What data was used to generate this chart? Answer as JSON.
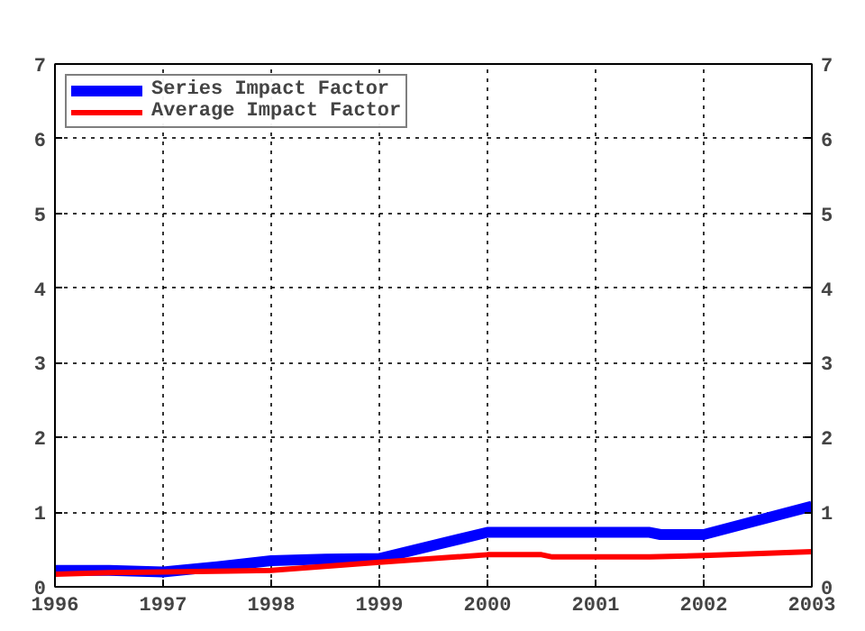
{
  "chart_data": {
    "type": "line",
    "xlim": [
      1996,
      2003
    ],
    "xticks": [
      1996,
      1997,
      1998,
      1999,
      2000,
      2001,
      2002,
      2003
    ],
    "ylim": [
      0,
      7
    ],
    "yticks": [
      0,
      1,
      2,
      3,
      4,
      5,
      6,
      7
    ],
    "y2lim": [
      0,
      7
    ],
    "y2ticks": [
      0,
      1,
      2,
      3,
      4,
      5,
      6,
      7
    ],
    "grid": true,
    "legend": "top left",
    "line_style": "solid",
    "series": [
      {
        "name": "Series Impact Factor",
        "color": "#0000ff",
        "x": [
          1996,
          1996.5,
          1997,
          1997.5,
          1998,
          1998.5,
          1999,
          2000,
          2001.5,
          2001.6,
          2002,
          2003
        ],
        "values": [
          0.22,
          0.22,
          0.2,
          0.27,
          0.35,
          0.37,
          0.38,
          0.73,
          0.73,
          0.7,
          0.7,
          1.08
        ]
      },
      {
        "name": "Average Impact Factor",
        "color": "#ff0000",
        "x": [
          1996,
          1996.5,
          1997,
          1998,
          1999,
          2000,
          2000.5,
          2000.6,
          2001.5,
          2002,
          2003
        ],
        "values": [
          0.17,
          0.19,
          0.2,
          0.22,
          0.33,
          0.43,
          0.43,
          0.4,
          0.4,
          0.42,
          0.47
        ]
      }
    ]
  }
}
